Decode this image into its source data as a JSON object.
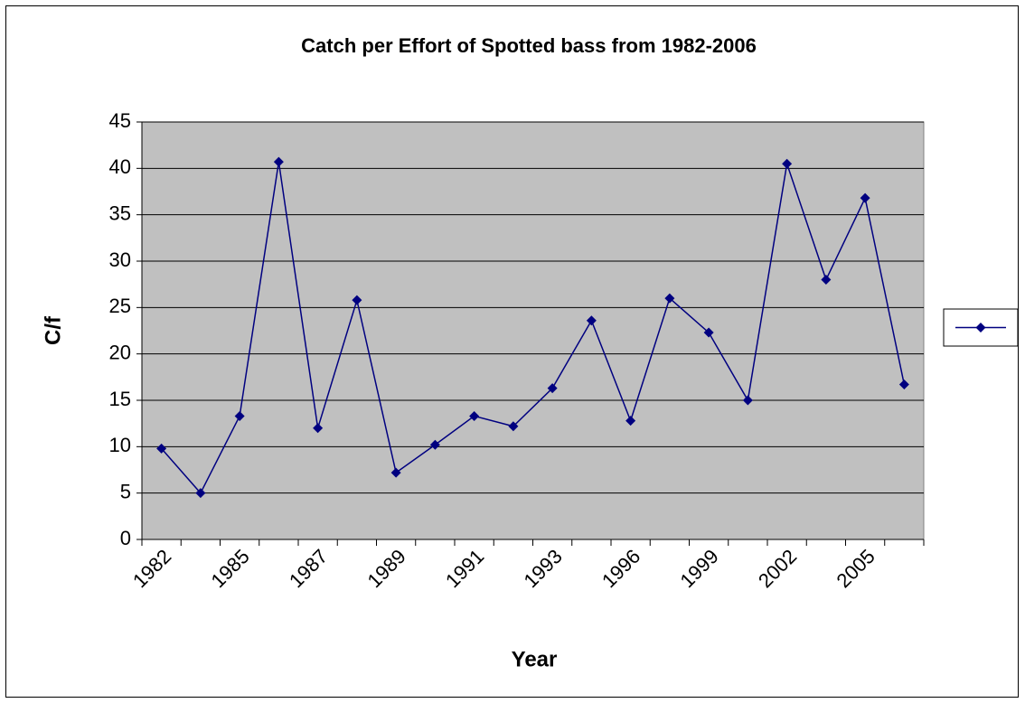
{
  "chart_data": {
    "type": "line",
    "title": "Catch per Effort of Spotted bass from 1982-2006",
    "x_label": "Year",
    "y_label": "C/f",
    "categories": [
      "1982",
      null,
      "1985",
      null,
      "1987",
      null,
      "1989",
      null,
      "1991",
      null,
      "1993",
      null,
      "1996",
      null,
      "1999",
      null,
      "2002",
      null,
      "2005",
      null
    ],
    "series": [
      {
        "color": "#000080",
        "values": [
          9.8,
          5,
          13.3,
          40.7,
          12,
          25.8,
          7.2,
          10.2,
          13.3,
          12.2,
          16.3,
          23.6,
          12.8,
          26,
          22.3,
          15,
          40.5,
          28,
          36.8,
          16.7
        ]
      }
    ],
    "ylim": [
      0,
      45
    ],
    "yticks": [
      0,
      5,
      10,
      15,
      20,
      25,
      30,
      35,
      40,
      45
    ],
    "grid": true,
    "legend": "right"
  }
}
